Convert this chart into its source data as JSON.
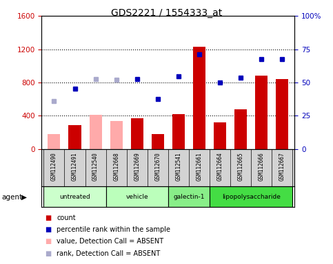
{
  "title": "GDS2221 / 1554333_at",
  "samples": [
    "GSM112490",
    "GSM112491",
    "GSM112540",
    "GSM112668",
    "GSM112669",
    "GSM112670",
    "GSM112541",
    "GSM112661",
    "GSM112664",
    "GSM112665",
    "GSM112666",
    "GSM112667"
  ],
  "counts": [
    null,
    290,
    null,
    null,
    370,
    185,
    420,
    1230,
    320,
    480,
    880,
    840
  ],
  "counts_absent": [
    180,
    null,
    410,
    340,
    null,
    null,
    null,
    null,
    null,
    null,
    null,
    null
  ],
  "ranks_pct": [
    null,
    45.6,
    null,
    null,
    52.5,
    37.5,
    54.4,
    71.3,
    50.0,
    53.8,
    67.5,
    67.5
  ],
  "ranks_pct_absent": [
    36.3,
    null,
    52.5,
    51.9,
    null,
    null,
    null,
    null,
    null,
    null,
    null,
    null
  ],
  "agents": [
    {
      "label": "untreated",
      "start": 0,
      "end": 2,
      "color": "#ccffcc"
    },
    {
      "label": "vehicle",
      "start": 3,
      "end": 5,
      "color": "#bbffbb"
    },
    {
      "label": "galectin-1",
      "start": 6,
      "end": 7,
      "color": "#88ee88"
    },
    {
      "label": "lipopolysaccharide",
      "start": 8,
      "end": 11,
      "color": "#44dd44"
    }
  ],
  "ylim_left": [
    0,
    1600
  ],
  "ylim_right": [
    0,
    100
  ],
  "yticks_left": [
    0,
    400,
    800,
    1200,
    1600
  ],
  "yticks_right": [
    0,
    25,
    50,
    75,
    100
  ],
  "bar_color_present": "#cc0000",
  "bar_color_absent": "#ffaaaa",
  "dot_color_present": "#0000bb",
  "dot_color_absent": "#aaaacc",
  "plot_bg": "#ffffff",
  "sample_bg": "#d3d3d3",
  "left_tick_color": "#cc0000",
  "right_tick_color": "#0000bb",
  "legend_labels": [
    "count",
    "percentile rank within the sample",
    "value, Detection Call = ABSENT",
    "rank, Detection Call = ABSENT"
  ],
  "legend_colors": [
    "#cc0000",
    "#0000bb",
    "#ffaaaa",
    "#aaaacc"
  ]
}
